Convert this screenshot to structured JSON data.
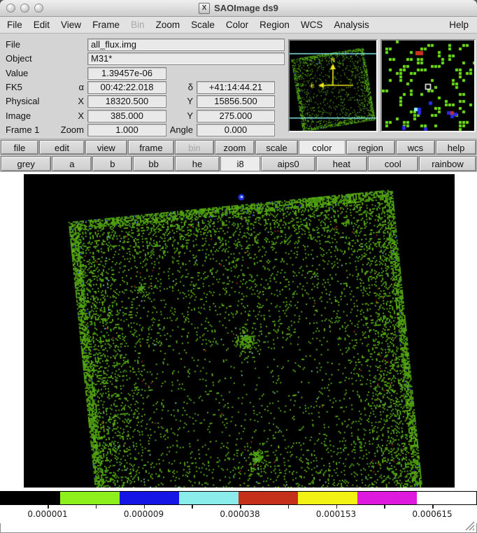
{
  "window": {
    "title": "SAOImage ds9",
    "icon_letter": "X"
  },
  "menu": {
    "items": [
      {
        "label": "File"
      },
      {
        "label": "Edit"
      },
      {
        "label": "View"
      },
      {
        "label": "Frame"
      },
      {
        "label": "Bin",
        "disabled": true
      },
      {
        "label": "Zoom"
      },
      {
        "label": "Scale"
      },
      {
        "label": "Color"
      },
      {
        "label": "Region"
      },
      {
        "label": "WCS"
      },
      {
        "label": "Analysis"
      }
    ],
    "help": "Help"
  },
  "info": {
    "rows": [
      {
        "label": "File",
        "value1": "all_flux.img"
      },
      {
        "label": "Object",
        "value1": "M31*"
      },
      {
        "label": "Value",
        "value1": "1.39457e-06"
      },
      {
        "label": "FK5",
        "sub1": "α",
        "value1": "00:42:22.018",
        "sub2": "δ",
        "value2": "+41:14:44.21"
      },
      {
        "label": "Physical",
        "sub1": "X",
        "value1": "18320.500",
        "sub2": "Y",
        "value2": "15856.500"
      },
      {
        "label": "Image",
        "sub1": "X",
        "value1": "385.000",
        "sub2": "Y",
        "value2": "275.000"
      },
      {
        "label": "Frame 1",
        "sub1": "Zoom",
        "value1": "1.000",
        "sub2": "Angle",
        "value2": "0.000"
      }
    ]
  },
  "toolbar": {
    "row1": [
      "file",
      "edit",
      "view",
      "frame",
      "bin",
      "zoom",
      "scale",
      "color",
      "region",
      "wcs",
      "help"
    ],
    "row2": [
      "grey",
      "a",
      "b",
      "bb",
      "he",
      "i8",
      "aips0",
      "heat",
      "cool",
      "rainbow"
    ],
    "active_row1": "color",
    "active_row2": "i8",
    "disabled_row1": "bin"
  },
  "colorbar": {
    "segments": [
      "#000000",
      "#8df01c",
      "#1515e6",
      "#8bedeb",
      "#c43019",
      "#f2f214",
      "#de1ade",
      "#ffffff"
    ],
    "labels": [
      "0.000001",
      "0.000009",
      "0.000038",
      "0.000153",
      "0.000615"
    ]
  },
  "image": {
    "background": "#000000",
    "speckle_green": "#6cde14",
    "speckle_green2": "#97f227",
    "speckle_blue": "#2a2ae8",
    "speckle_cyan": "#8ff0f0",
    "speckle_red": "#c83420",
    "magnifier_cursor": "#ffffff"
  },
  "panner": {
    "north_label": "N",
    "east_label": "E",
    "compass_color": "#f0e818",
    "view_line_color": "#86ecec"
  }
}
